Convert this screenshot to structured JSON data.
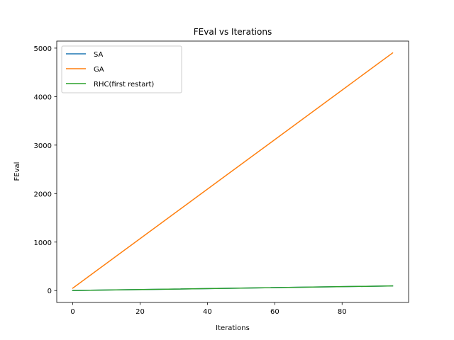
{
  "chart_data": {
    "type": "line",
    "title": "FEval vs Iterations",
    "xlabel": "Iterations",
    "ylabel": "FEval",
    "xlim": [
      -4.75,
      99.75
    ],
    "ylim": [
      -245,
      5145
    ],
    "xticks": [
      0,
      20,
      40,
      60,
      80
    ],
    "yticks": [
      0,
      1000,
      2000,
      3000,
      4000,
      5000
    ],
    "grid": false,
    "legend_position": "upper left",
    "series": [
      {
        "name": "SA",
        "color": "#1f77b4",
        "x": [
          0,
          95
        ],
        "y": [
          1,
          96
        ]
      },
      {
        "name": "GA",
        "color": "#ff7f0e",
        "x": [
          0,
          95
        ],
        "y": [
          50,
          4900
        ]
      },
      {
        "name": "RHC(first restart)",
        "color": "#2ca02c",
        "x": [
          0,
          95
        ],
        "y": [
          1,
          96
        ]
      }
    ]
  }
}
